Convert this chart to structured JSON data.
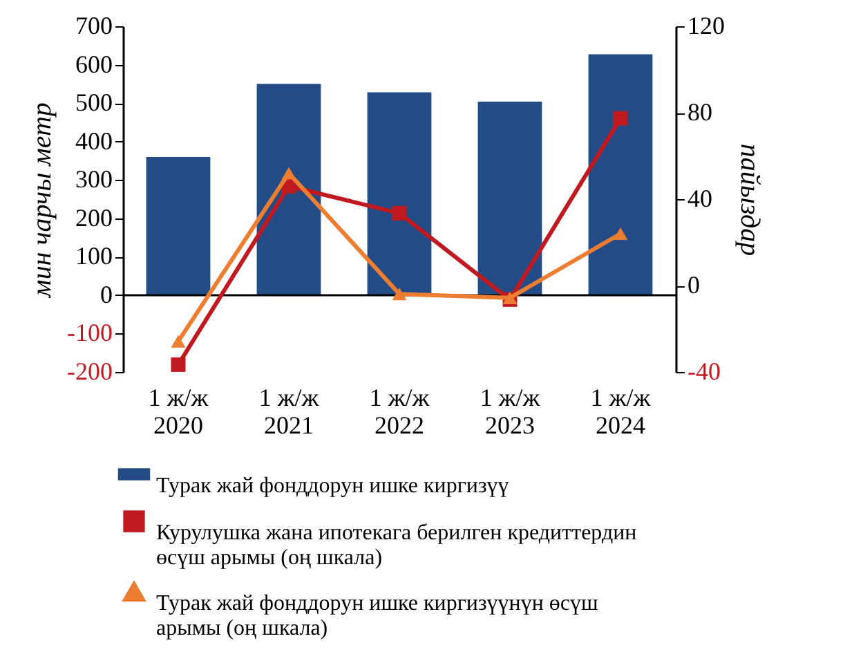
{
  "chart_data": {
    "type": "bar",
    "categories": [
      "1 ж/ж\n2020",
      "1 ж/ж\n2021",
      "1 ж/ж\n2022",
      "1 ж/ж\n2023",
      "1 ж/ж\n2024"
    ],
    "ylabel": "мин чарчы метр",
    "y2label": "пайыздар",
    "ylim": [
      -200,
      700
    ],
    "yticks": [
      -200,
      -100,
      0,
      100,
      200,
      300,
      400,
      500,
      600,
      700
    ],
    "y2lim": [
      -40,
      120
    ],
    "y2ticks": [
      -40,
      0,
      40,
      80,
      120
    ],
    "series": [
      {
        "name": "Турак жай фонддорун ишке киргизүү",
        "color": "#234c86",
        "values": [
          360,
          550,
          528,
          504,
          627
        ]
      },
      {
        "name": "Курулушка жана ипотекага берилген кредиттердин өсүш арымы (оң шкала)",
        "type": "line",
        "axis": "y2",
        "marker": "square",
        "color": "#c0191f",
        "values": [
          -36.6,
          46,
          33.5,
          -6.5,
          77.4
        ]
      },
      {
        "name": "Турак жай фонддорун ишке киргизүүнүн өсүш арымы (оң шкала)",
        "type": "line",
        "axis": "y2",
        "marker": "triangle",
        "color": "#ed7d31",
        "values": [
          -25.8,
          52,
          -3.9,
          -5.7,
          24
        ]
      }
    ],
    "ref_lines": [
      {
        "axis": "y",
        "value": 0
      }
    ],
    "legend": "bottom",
    "grid": false
  }
}
